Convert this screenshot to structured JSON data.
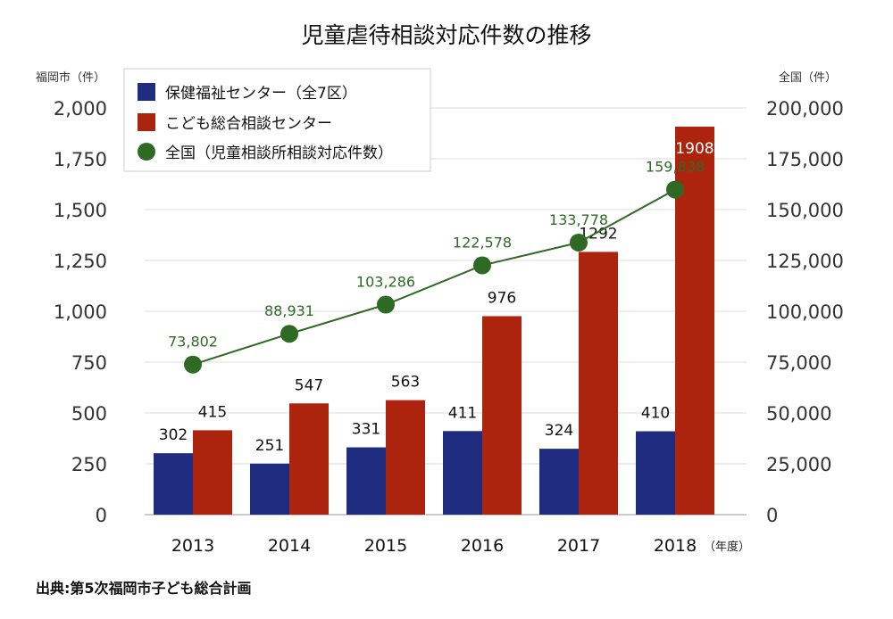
{
  "chart_data": {
    "type": "bar+line",
    "title": "児童虐待相談対応件数の推移",
    "left_axis_label": "福岡市（件）",
    "right_axis_label": "全国（件）",
    "x_unit_label": "（年度）",
    "source": "出典:第5次福岡市子ども総合計画",
    "categories": [
      "2013",
      "2014",
      "2015",
      "2016",
      "2017",
      "2018"
    ],
    "ylim_left": [
      0,
      2000
    ],
    "yticks_left": [
      "0",
      "250",
      "500",
      "750",
      "1,000",
      "1,250",
      "1,500",
      "1,750",
      "2,000"
    ],
    "ylim_right": [
      0,
      200000
    ],
    "yticks_right": [
      "0",
      "25,000",
      "50,000",
      "75,000",
      "100,000",
      "125,000",
      "150,000",
      "175,000",
      "200,000"
    ],
    "grid": true,
    "legend_placement": "top-left",
    "series": [
      {
        "name": "保健福祉センター（全7区）",
        "type": "bar",
        "axis": "left",
        "color": "#1f2c80",
        "values": [
          302,
          251,
          331,
          411,
          324,
          410
        ],
        "labels": [
          "302",
          "251",
          "331",
          "411",
          "324",
          "410"
        ]
      },
      {
        "name": "こども総合相談センター",
        "type": "bar",
        "axis": "left",
        "color": "#ad240e",
        "values": [
          415,
          547,
          563,
          976,
          1292,
          1908
        ],
        "labels": [
          "415",
          "547",
          "563",
          "976",
          "1292",
          "1908"
        ]
      },
      {
        "name": "全国（児童相談所相談対応件数）",
        "type": "line",
        "axis": "right",
        "color": "#2f6a25",
        "values": [
          73802,
          88931,
          103286,
          122578,
          133778,
          159838
        ],
        "labels": [
          "73,802",
          "88,931",
          "103,286",
          "122,578",
          "133,778",
          "159,838"
        ]
      }
    ]
  }
}
